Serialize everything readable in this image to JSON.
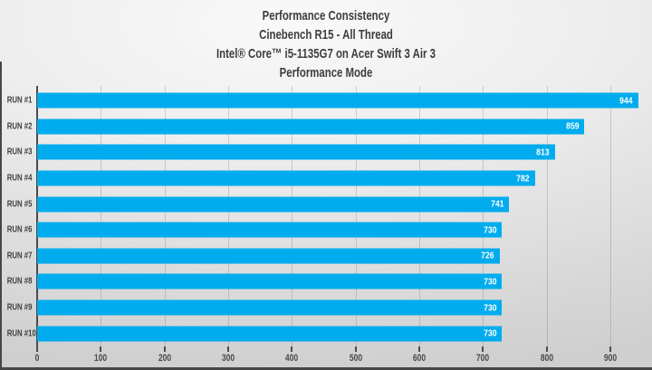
{
  "chart_data": {
    "type": "bar",
    "orientation": "horizontal",
    "title_lines": [
      "Performance Consistency",
      "Cinebench R15 - All Thread",
      "Intel® Core™ i5-1135G7 on Acer Swift 3 Air 3",
      "Performance Mode"
    ],
    "categories": [
      "RUN #1",
      "RUN #2",
      "RUN #3",
      "RUN #4",
      "RUN #5",
      "RUN #6",
      "RUN #7",
      "RUN #8",
      "RUN #9",
      "RUN #10"
    ],
    "values": [
      944,
      859,
      813,
      782,
      741,
      730,
      726,
      730,
      730,
      730
    ],
    "xlim": [
      0,
      964
    ],
    "x_ticks": [
      0,
      100,
      200,
      300,
      400,
      500,
      600,
      700,
      800,
      900
    ],
    "grid": true,
    "legend": "none",
    "bar_color": "#00ACEE",
    "value_label_color": "#FFFFFF",
    "title_color": "#3D3D3D",
    "axis_color": "#4A4A4A"
  }
}
